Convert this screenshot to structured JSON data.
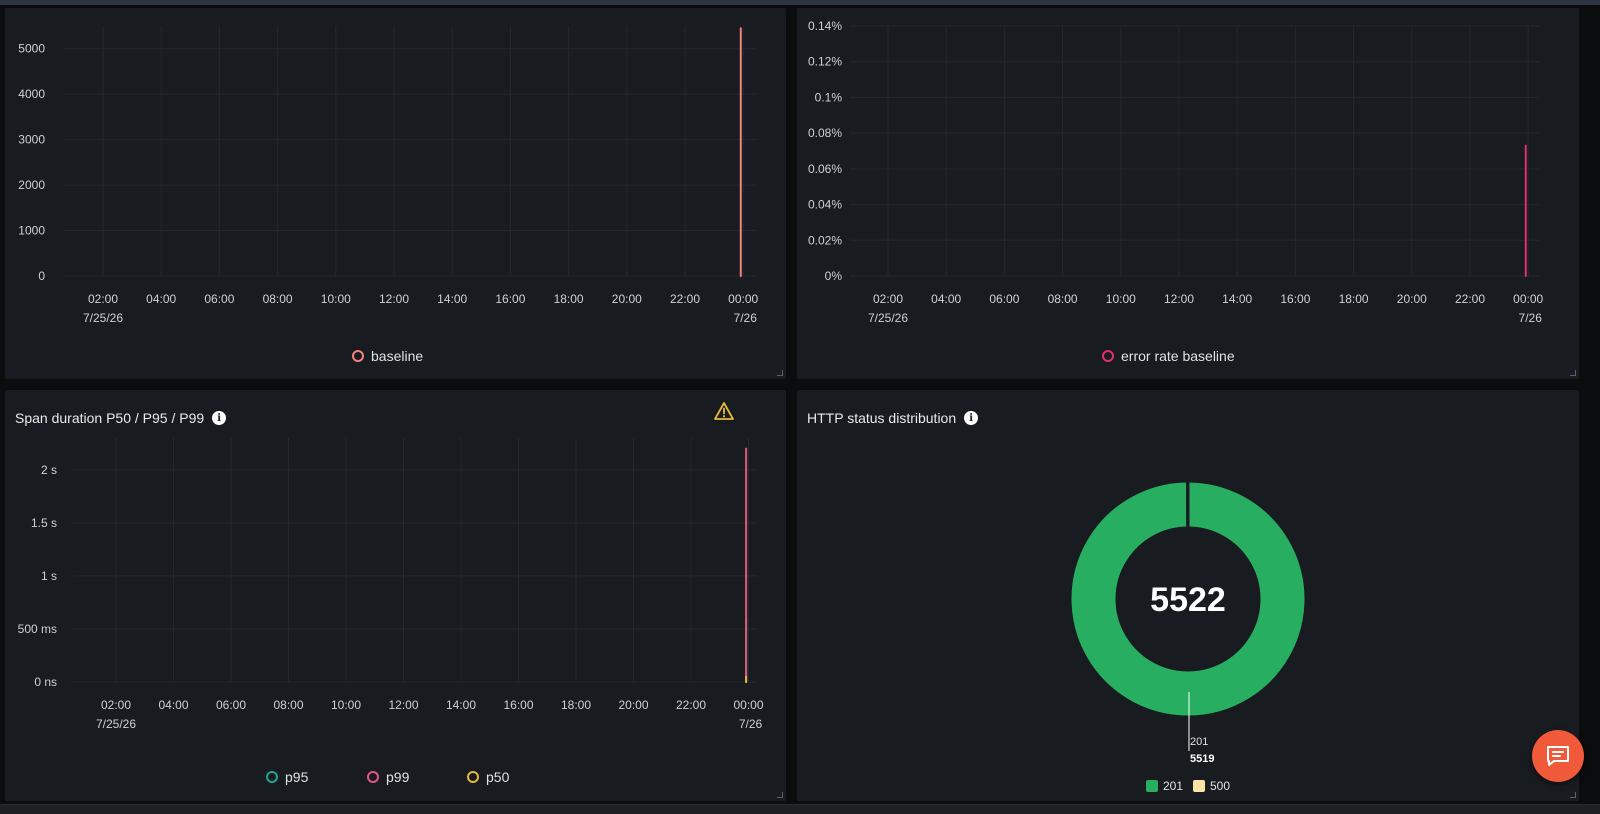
{
  "panels": {
    "requests": {
      "legend": [
        {
          "label": "baseline",
          "color": "#f2847a"
        }
      ]
    },
    "error_rate": {
      "legend": [
        {
          "label": "error rate baseline",
          "color": "#e02f6b"
        }
      ]
    },
    "span_duration": {
      "title": "Span duration P50 / P95 / P99",
      "legend": [
        {
          "label": "p95",
          "color": "#1fa393"
        },
        {
          "label": "p99",
          "color": "#e0567e"
        },
        {
          "label": "p50",
          "color": "#e5b83d"
        }
      ]
    },
    "http_status": {
      "title": "HTTP status distribution",
      "total": "5522",
      "slice_label_code": "201",
      "slice_label_value": "5519",
      "legend": [
        {
          "label": "201",
          "color": "#28ae60"
        },
        {
          "label": "500",
          "color": "#fbe3a4"
        }
      ]
    }
  },
  "chart_data": [
    {
      "type": "line",
      "x": [
        "02:00",
        "04:00",
        "06:00",
        "08:00",
        "10:00",
        "12:00",
        "14:00",
        "16:00",
        "18:00",
        "20:00",
        "22:00",
        "00:00"
      ],
      "x_sublabels": {
        "02:00": "7/25/26",
        "00:00": "7/26"
      },
      "yticks": [
        "0",
        "1000",
        "2000",
        "3000",
        "4000",
        "5000"
      ],
      "ylim": [
        0,
        5500
      ],
      "series": [
        {
          "name": "baseline",
          "color": "#f2847a",
          "spike_at": "23:55",
          "values_peak": 5450
        }
      ]
    },
    {
      "type": "line",
      "x": [
        "02:00",
        "04:00",
        "06:00",
        "08:00",
        "10:00",
        "12:00",
        "14:00",
        "16:00",
        "18:00",
        "20:00",
        "22:00",
        "00:00"
      ],
      "x_sublabels": {
        "02:00": "7/25/26",
        "00:00": "7/26"
      },
      "yticks": [
        "0%",
        "0.02%",
        "0.04%",
        "0.06%",
        "0.08%",
        "0.1%",
        "0.12%",
        "0.14%"
      ],
      "ylim": [
        0,
        0.14
      ],
      "series": [
        {
          "name": "error rate baseline",
          "color": "#e02f6b",
          "spike_at": "23:55",
          "values_peak": 0.073
        }
      ]
    },
    {
      "type": "line",
      "x": [
        "02:00",
        "04:00",
        "06:00",
        "08:00",
        "10:00",
        "12:00",
        "14:00",
        "16:00",
        "18:00",
        "20:00",
        "22:00",
        "00:00"
      ],
      "x_sublabels": {
        "02:00": "7/25/26",
        "00:00": "7/26"
      },
      "yticks": [
        "0 ns",
        "500 ms",
        "1 s",
        "1.5 s",
        "2 s"
      ],
      "ylim": [
        0,
        2.3
      ],
      "series": [
        {
          "name": "p95",
          "color": "#1fa393",
          "spike_at": "23:55",
          "values_peak": 0.6
        },
        {
          "name": "p99",
          "color": "#e0567e",
          "spike_at": "23:55",
          "values_peak": 2.2
        },
        {
          "name": "p50",
          "color": "#e5b83d",
          "spike_at": "23:55",
          "values_peak": 0.05
        }
      ]
    },
    {
      "type": "pie",
      "categories": [
        "201",
        "500"
      ],
      "values": [
        5519,
        3
      ],
      "total": 5522
    }
  ]
}
